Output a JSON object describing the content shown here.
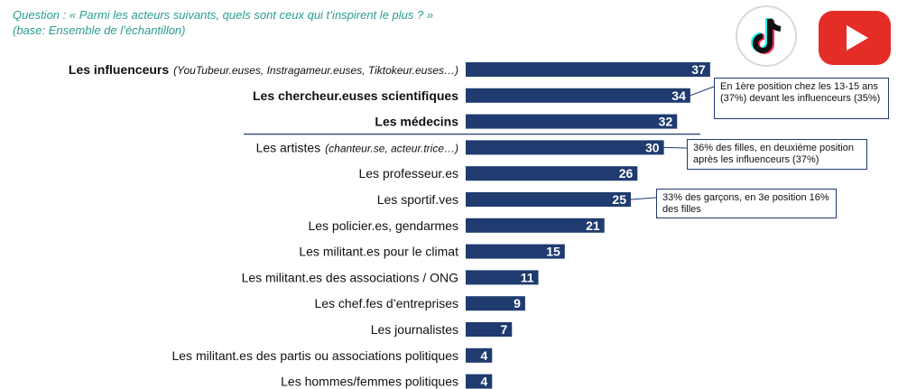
{
  "header": {
    "question_line1": "Question : « Parmi les acteurs suivants, quels sont ceux qui t’inspirent le plus ?  »",
    "question_line2": "(base: Ensemble de l’échantillon)"
  },
  "logos": [
    "tiktok-logo",
    "youtube-logo"
  ],
  "colors": {
    "bar": "#1f3b6f",
    "question": "#2a9d8f",
    "separator": "#1f3b6f"
  },
  "chart_data": {
    "type": "bar",
    "orientation": "horizontal",
    "categories": [
      {
        "label": "Les influenceurs",
        "sub": "(YouTubeur.euses, Instragameur.euses, Tiktokeur.euses…)",
        "bold": true
      },
      {
        "label": "Les chercheur.euses scientifiques",
        "sub": "",
        "bold": true
      },
      {
        "label": "Les médecins",
        "sub": "",
        "bold": true
      },
      {
        "label": "Les artistes",
        "sub": "(chanteur.se, acteur.trice…)",
        "bold": false
      },
      {
        "label": "Les professeur.es",
        "sub": "",
        "bold": false
      },
      {
        "label": "Les sportif.ves",
        "sub": "",
        "bold": false
      },
      {
        "label": "Les policier.es, gendarmes",
        "sub": "",
        "bold": false
      },
      {
        "label": "Les militant.es pour le climat",
        "sub": "",
        "bold": false
      },
      {
        "label": "Les militant.es des associations / ONG",
        "sub": "",
        "bold": false
      },
      {
        "label": "Les chef.fes d’entreprises",
        "sub": "",
        "bold": false
      },
      {
        "label": "Les journalistes",
        "sub": "",
        "bold": false
      },
      {
        "label": "Les militant.es des partis ou associations politiques",
        "sub": "",
        "bold": false
      },
      {
        "label": "Les hommes/femmes politiques",
        "sub": "",
        "bold": false
      }
    ],
    "values": [
      37,
      34,
      32,
      30,
      26,
      25,
      21,
      15,
      11,
      9,
      7,
      4,
      4
    ],
    "annotations": [
      {
        "category_index": 1,
        "text": "En 1ère position chez les 13-15 ans (37%) devant les influenceurs (35%)"
      },
      {
        "category_index": 3,
        "text": "36% des filles, en deuxième position après les influenceurs (37%)"
      },
      {
        "category_index": 5,
        "text": "33% des garçons, en 3e position 16% des filles"
      }
    ]
  }
}
